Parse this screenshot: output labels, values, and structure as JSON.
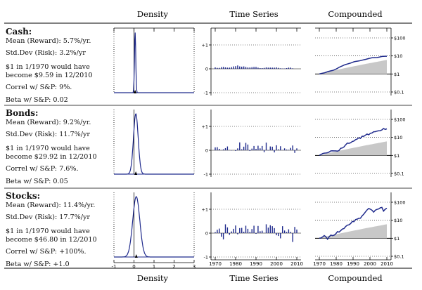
{
  "header_labels": [
    "Density",
    "Time Series",
    "Compounded"
  ],
  "footer_labels": [
    "Density",
    "Time Series",
    "Compounded"
  ],
  "colors": {
    "series": "#1f2a8c",
    "shade": "#c8c8c8",
    "axis": "#000000",
    "grid": "#000000"
  },
  "rows": [
    {
      "asset": "Cash:",
      "mean": "Mean (Reward): 5.7%/yr.",
      "std": "Std.Dev (Risk): 3.2%/yr",
      "growth1": "$1 in 1/1970 would have",
      "growth2": "become $9.59 in 12/2010",
      "correl": "Correl w/ S&P: 9%.",
      "beta": "Beta w/ S&P: 0.02"
    },
    {
      "asset": "Bonds:",
      "mean": "Mean (Reward): 9.2%/yr.",
      "std": "Std.Dev (Risk): 11.7%/yr",
      "growth1": "$1 in 1/1970 would have",
      "growth2": "become $29.92 in 12/2010",
      "correl": "Correl w/ S&P: 7.6%.",
      "beta": "Beta w/ S&P: 0.05"
    },
    {
      "asset": "Stocks:",
      "mean": "Mean (Reward): 11.4%/yr.",
      "std": "Std.Dev (Risk): 17.7%/yr",
      "growth1": "$1 in 1/1970 would have",
      "growth2": "become $46.80 in 12/2010",
      "correl": "Correl w/ S&P: +100%.",
      "beta": "Beta w/ S&P: +1.0"
    }
  ],
  "chart_data": [
    {
      "type": "line",
      "panel": "Density",
      "xlim": [
        -1,
        3
      ],
      "xticks": [
        "-1",
        "0",
        "1",
        "2",
        "3"
      ],
      "series": [
        {
          "name": "Cash",
          "mean": 0.057,
          "sd": 0.032
        },
        {
          "name": "Bonds",
          "mean": 0.092,
          "sd": 0.117
        },
        {
          "name": "Stocks",
          "mean": 0.114,
          "sd": 0.177
        }
      ]
    },
    {
      "type": "bar",
      "panel": "Time Series",
      "ylim": [
        -1,
        1
      ],
      "yticks": [
        "+1",
        "0",
        "-1"
      ],
      "xticks": [
        "1970",
        "1980",
        "1990",
        "2000",
        "2010"
      ],
      "x": [
        1970,
        1971,
        1972,
        1973,
        1974,
        1975,
        1976,
        1977,
        1978,
        1979,
        1980,
        1981,
        1982,
        1983,
        1984,
        1985,
        1986,
        1987,
        1988,
        1989,
        1990,
        1991,
        1992,
        1993,
        1994,
        1995,
        1996,
        1997,
        1998,
        1999,
        2000,
        2001,
        2002,
        2003,
        2004,
        2005,
        2006,
        2007,
        2008,
        2009,
        2010
      ],
      "series": [
        {
          "name": "Cash",
          "values": [
            0.06,
            0.04,
            0.04,
            0.07,
            0.08,
            0.06,
            0.05,
            0.05,
            0.07,
            0.1,
            0.11,
            0.14,
            0.1,
            0.09,
            0.1,
            0.08,
            0.06,
            0.06,
            0.07,
            0.08,
            0.08,
            0.05,
            0.03,
            0.03,
            0.04,
            0.06,
            0.05,
            0.05,
            0.05,
            0.05,
            0.06,
            0.04,
            0.02,
            0.01,
            0.01,
            0.03,
            0.05,
            0.05,
            0.02,
            0.0,
            0.0
          ]
        },
        {
          "name": "Bonds",
          "values": [
            0.12,
            0.13,
            0.06,
            0.01,
            0.04,
            0.09,
            0.16,
            0.01,
            -0.01,
            0.0,
            -0.03,
            0.08,
            0.33,
            0.04,
            0.15,
            0.31,
            0.24,
            -0.03,
            0.07,
            0.18,
            0.06,
            0.19,
            0.08,
            0.18,
            -0.08,
            0.32,
            -0.01,
            0.16,
            0.15,
            -0.09,
            0.21,
            0.04,
            0.17,
            0.01,
            0.08,
            0.03,
            0.02,
            0.1,
            0.2,
            -0.11,
            0.08
          ]
        },
        {
          "name": "Stocks",
          "values": [
            0.04,
            0.14,
            0.19,
            -0.15,
            -0.26,
            0.37,
            0.24,
            -0.07,
            0.07,
            0.18,
            0.32,
            -0.05,
            0.21,
            0.22,
            0.06,
            0.31,
            0.18,
            0.05,
            0.17,
            0.31,
            -0.03,
            0.3,
            0.08,
            0.1,
            0.01,
            0.37,
            0.23,
            0.33,
            0.29,
            0.21,
            -0.09,
            -0.12,
            -0.22,
            0.29,
            0.11,
            0.05,
            0.16,
            0.05,
            -0.37,
            0.26,
            0.15
          ]
        }
      ]
    },
    {
      "type": "area",
      "panel": "Compounded",
      "scale": "log",
      "ylim": [
        0.1,
        100
      ],
      "yticks": [
        "$100",
        "$10",
        "$1",
        "$0.1"
      ],
      "xticks": [
        "1970",
        "1980",
        "1990",
        "2000",
        "2010"
      ],
      "series": [
        {
          "name": "Cash",
          "final": 9.59
        },
        {
          "name": "Bonds",
          "final": 29.92
        },
        {
          "name": "Stocks",
          "final": 46.8
        }
      ]
    }
  ]
}
